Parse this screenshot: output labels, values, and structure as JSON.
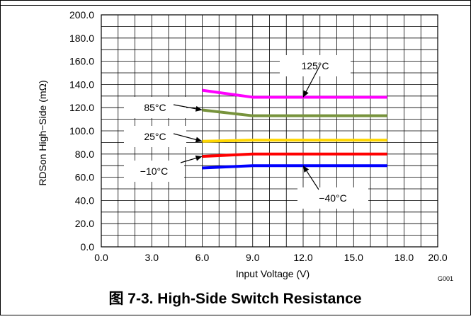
{
  "chart_data": {
    "type": "line",
    "title": "",
    "xlabel": "Input Voltage (V)",
    "ylabel": "RDSon High−Side (mΩ)",
    "xlim": [
      0,
      20
    ],
    "ylim": [
      0,
      200
    ],
    "x_ticks": [
      "0.0",
      "3.0",
      "6.0",
      "9.0",
      "12.0",
      "15.0",
      "18.0",
      "20.0"
    ],
    "y_ticks": [
      "0.0",
      "20.0",
      "40.0",
      "60.0",
      "80.0",
      "100.0",
      "120.0",
      "140.0",
      "160.0",
      "180.0",
      "200.0"
    ],
    "grid": true,
    "series": [
      {
        "name": "125°C",
        "color": "#ff00ff",
        "x": [
          6,
          9,
          17
        ],
        "y": [
          135,
          129,
          129
        ]
      },
      {
        "name": "85°C",
        "color": "#77933c",
        "x": [
          6,
          9,
          17
        ],
        "y": [
          118,
          113,
          113
        ]
      },
      {
        "name": "25°C",
        "color": "#ffd700",
        "x": [
          6,
          9,
          17
        ],
        "y": [
          91,
          92,
          92
        ]
      },
      {
        "name": "−10°C",
        "color": "#ff0000",
        "x": [
          6,
          9,
          17
        ],
        "y": [
          78,
          80,
          80
        ]
      },
      {
        "name": "−40°C",
        "color": "#0000ff",
        "x": [
          6,
          9,
          17
        ],
        "y": [
          68,
          70,
          70
        ]
      }
    ],
    "annotations": [
      {
        "text": "125°C",
        "target": [
          12.0,
          129
        ]
      },
      {
        "text": "85°C",
        "target": [
          6.0,
          118
        ]
      },
      {
        "text": "25°C",
        "target": [
          6.0,
          91
        ]
      },
      {
        "text": "−10°C",
        "target": [
          6.0,
          78
        ]
      },
      {
        "text": "−40°C",
        "target": [
          12.0,
          70
        ]
      }
    ],
    "figure_id": "G001",
    "caption": "图 7-3. High-Side Switch Resistance"
  }
}
